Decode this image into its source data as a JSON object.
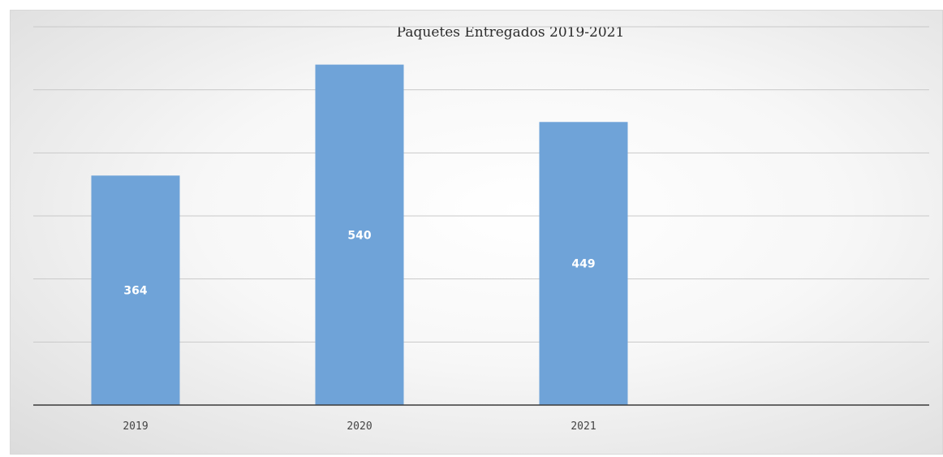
{
  "chart_data": {
    "type": "bar",
    "title": "Paquetes Entregados 2019-2021",
    "xlabel": "",
    "ylabel": "",
    "categories": [
      "2019",
      "2020",
      "2021"
    ],
    "values": [
      364,
      540,
      449
    ],
    "ylim": [
      0,
      600
    ],
    "grid": true,
    "legend": "none",
    "bar_color": "#6fa3d8",
    "data_label_color": "#ffffff"
  }
}
